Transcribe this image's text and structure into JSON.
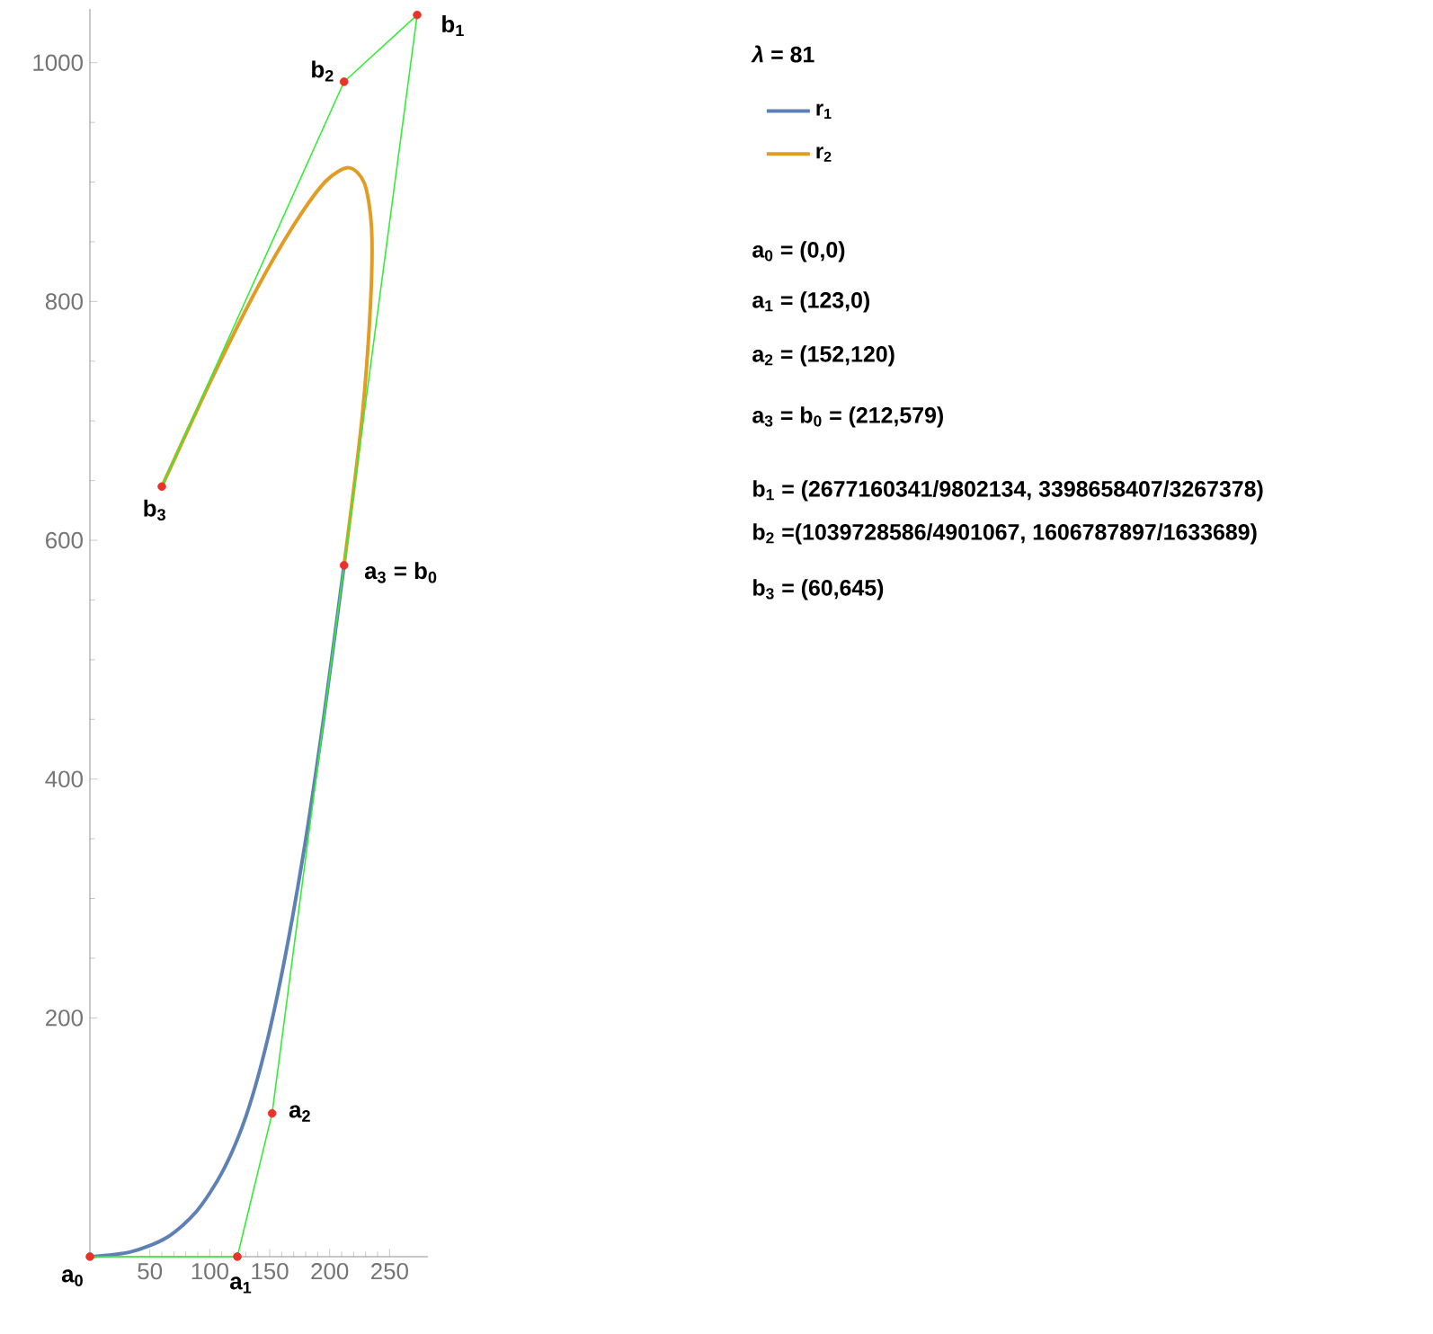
{
  "chart_data": {
    "type": "line",
    "xlim": [
      0,
      282
    ],
    "ylim": [
      0,
      1045
    ],
    "xticks": [
      50,
      100,
      150,
      200,
      250
    ],
    "yticks": [
      200,
      400,
      600,
      800,
      1000
    ],
    "legend": "right",
    "series": [
      {
        "name": "r$_{1}$",
        "color": "#5e81b5",
        "x": [
          0,
          34,
          64,
          89,
          111,
          130,
          147,
          163,
          179,
          195,
          212
        ],
        "values": [
          0,
          4,
          16,
          38,
          72,
          117,
          177,
          252,
          343,
          451,
          579
        ]
      },
      {
        "name": "r$_{2}$",
        "color": "#e19c24",
        "x": [
          212,
          227,
          234,
          235,
          229,
          216,
          197,
          172,
          140,
          103,
          60
        ],
        "values": [
          579,
          702,
          796,
          861,
          899,
          912,
          901,
          867,
          812,
          738,
          645
        ]
      },
      {
        "color": "#33ee33",
        "x": [
          0,
          123,
          152,
          212
        ],
        "values": [
          0,
          0,
          120,
          579
        ]
      },
      {
        "color": "#33ee33",
        "x": [
          212,
          273,
          212,
          60
        ],
        "values": [
          579,
          1040,
          984,
          645
        ]
      },
      {
        "type": "scatter",
        "color": "#e8322a",
        "x": [
          0,
          123,
          152,
          212,
          273,
          212,
          60
        ],
        "values": [
          0,
          0,
          120,
          579,
          1040,
          984,
          645
        ]
      }
    ],
    "annotations": [
      "*λ* = 81",
      "a$_{0}$ = (0,0)",
      "a$_{1}$ = (123,0)",
      "a$_{2}$ = (152,120)",
      "a$_{3}$ = b$_{0}$ = (212,579)",
      "b$_{1}$ = (2677160341/9802134, 3398658407/3267378)",
      "b$_{2}$ =(1039728586/4901067, 1606787897/1633689)",
      "b$_{3}$ = (60,645)",
      {
        "text": "a$_{0}$",
        "x": 0,
        "y": 0
      },
      {
        "text": "a$_{1}$",
        "x": 123,
        "y": 0
      },
      {
        "text": "a$_{2}$",
        "x": 152,
        "y": 120
      },
      {
        "text": "a$_{3}$ = b$_{0}$",
        "x": 212,
        "y": 579
      },
      {
        "text": "b$_{1}$",
        "x": 273,
        "y": 1040
      },
      {
        "text": "b$_{2}$",
        "x": 212,
        "y": 984
      },
      {
        "text": "b$_{3}$",
        "x": 60,
        "y": 645
      }
    ]
  }
}
